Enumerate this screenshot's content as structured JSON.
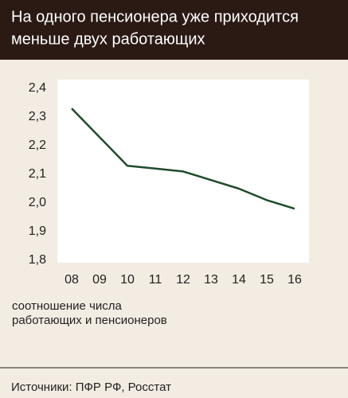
{
  "chart_data": {
    "type": "line",
    "title": [
      "На одного пенсионера уже приходится",
      "меньше двух работающих"
    ],
    "categories": [
      "08",
      "09",
      "10",
      "11",
      "12",
      "13",
      "14",
      "15",
      "16"
    ],
    "series": [
      {
        "name": "соотношение числа работающих и пенсионеров",
        "color": "#1f4b2c",
        "values": [
          2.33,
          2.23,
          2.13,
          2.12,
          2.11,
          2.08,
          2.05,
          2.01,
          1.98
        ]
      }
    ],
    "ylim": [
      1.8,
      2.4
    ],
    "yticks": [
      {
        "value": 1.8,
        "label": "1,8"
      },
      {
        "value": 1.9,
        "label": "1,9"
      },
      {
        "value": 2.0,
        "label": "2,0"
      },
      {
        "value": 2.1,
        "label": "2,1"
      },
      {
        "value": 2.2,
        "label": "2,2"
      },
      {
        "value": 2.3,
        "label": "2,3"
      },
      {
        "value": 2.4,
        "label": "2,4"
      }
    ],
    "grid": false,
    "axis_label": [
      "соотношение числа",
      "работающих и пенсионеров"
    ],
    "source": "Источники: ПФР РФ, Росстат"
  }
}
